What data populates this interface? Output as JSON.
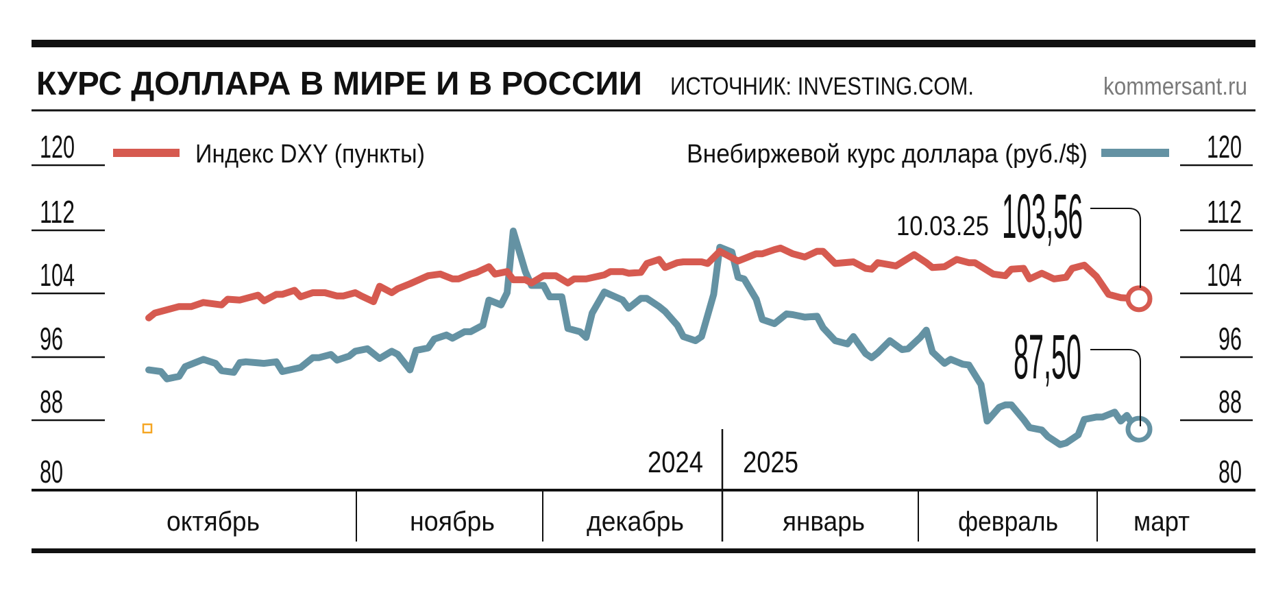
{
  "header": {
    "title": "КУРС ДОЛЛАРА В МИРЕ И В РОССИИ",
    "source": "ИСТОЧНИК: INVESTING.COM.",
    "brand": "kommersant.ru"
  },
  "legend": {
    "dxy": "Индекс DXY (пункты)",
    "rub": "Внебиржевой курс доллара (руб./$)"
  },
  "annotations": {
    "date": "10.03.25",
    "dxy_last": "103,56",
    "rub_last": "87,50"
  },
  "colors": {
    "dxy": "#d65a50",
    "rub": "#6492a3",
    "text": "#111111",
    "brand": "#7a7a7a",
    "marker": "#f5a623"
  },
  "chart_data": {
    "type": "line",
    "title": "КУРС ДОЛЛАРА В МИРЕ И В РОССИИ",
    "ylim": [
      80,
      120
    ],
    "y_ticks": [
      "120",
      "112",
      "104",
      "96",
      "88",
      "80"
    ],
    "y_ticks_right": [
      "120",
      "112",
      "104",
      "96",
      "88",
      "80"
    ],
    "year_labels": [
      "2024",
      "2025"
    ],
    "month_labels": [
      "октябрь",
      "ноябрь",
      "декабрь",
      "январь",
      "февраль",
      "март"
    ],
    "grid": false,
    "legend_placement": "top",
    "series": [
      {
        "name": "Индекс DXY (пункты)",
        "color": "#d65a50",
        "points": [
          [
            "2024-09-28",
            101.2
          ],
          [
            "2024-09-29",
            101.8
          ],
          [
            "2024-10-01",
            102.2
          ],
          [
            "2024-10-03",
            102.6
          ],
          [
            "2024-10-05",
            102.6
          ],
          [
            "2024-10-07",
            103.1
          ],
          [
            "2024-10-10",
            102.8
          ],
          [
            "2024-10-11",
            103.5
          ],
          [
            "2024-10-13",
            103.4
          ],
          [
            "2024-10-16",
            104.0
          ],
          [
            "2024-10-17",
            103.3
          ],
          [
            "2024-10-19",
            104.1
          ],
          [
            "2024-10-20",
            104.1
          ],
          [
            "2024-10-22",
            104.6
          ],
          [
            "2024-10-23",
            103.8
          ],
          [
            "2024-10-25",
            104.3
          ],
          [
            "2024-10-27",
            104.3
          ],
          [
            "2024-10-29",
            103.9
          ],
          [
            "2024-10-30",
            103.9
          ],
          [
            "2024-11-01",
            104.3
          ],
          [
            "2024-11-02",
            103.9
          ],
          [
            "2024-11-04",
            103.2
          ],
          [
            "2024-11-05",
            105.1
          ],
          [
            "2024-11-07",
            104.3
          ],
          [
            "2024-11-08",
            104.8
          ],
          [
            "2024-11-10",
            105.4
          ],
          [
            "2024-11-13",
            106.4
          ],
          [
            "2024-11-15",
            106.6
          ],
          [
            "2024-11-17",
            106.0
          ],
          [
            "2024-11-18",
            106.0
          ],
          [
            "2024-11-20",
            106.6
          ],
          [
            "2024-11-21",
            106.8
          ],
          [
            "2024-11-23",
            107.5
          ],
          [
            "2024-11-24",
            106.6
          ],
          [
            "2024-11-26",
            106.9
          ],
          [
            "2024-11-27",
            105.9
          ],
          [
            "2024-11-29",
            105.9
          ],
          [
            "2024-11-30",
            105.5
          ],
          [
            "2024-12-02",
            106.4
          ],
          [
            "2024-12-04",
            106.4
          ],
          [
            "2024-12-06",
            105.5
          ],
          [
            "2024-12-07",
            106.0
          ],
          [
            "2024-12-09",
            106.0
          ],
          [
            "2024-12-12",
            106.5
          ],
          [
            "2024-12-13",
            106.9
          ],
          [
            "2024-12-15",
            106.9
          ],
          [
            "2024-12-16",
            106.7
          ],
          [
            "2024-12-18",
            106.8
          ],
          [
            "2024-12-19",
            107.9
          ],
          [
            "2024-12-21",
            108.4
          ],
          [
            "2024-12-22",
            107.4
          ],
          [
            "2024-12-24",
            108.0
          ],
          [
            "2024-12-25",
            108.1
          ],
          [
            "2024-12-28",
            108.1
          ],
          [
            "2024-12-29",
            107.9
          ],
          [
            "2024-12-31",
            109.4
          ],
          [
            "2025-01-01",
            109.0
          ],
          [
            "2025-01-03",
            108.2
          ],
          [
            "2025-01-04",
            108.5
          ],
          [
            "2025-01-06",
            109.1
          ],
          [
            "2025-01-07",
            109.1
          ],
          [
            "2025-01-09",
            109.6
          ],
          [
            "2025-01-10",
            109.8
          ],
          [
            "2025-01-12",
            109.1
          ],
          [
            "2025-01-14",
            108.7
          ],
          [
            "2025-01-16",
            109.4
          ],
          [
            "2025-01-17",
            109.4
          ],
          [
            "2025-01-19",
            107.9
          ],
          [
            "2025-01-22",
            108.1
          ],
          [
            "2025-01-24",
            107.3
          ],
          [
            "2025-01-25",
            107.2
          ],
          [
            "2025-01-26",
            108.0
          ],
          [
            "2025-01-29",
            107.6
          ],
          [
            "2025-02-01",
            109.0
          ],
          [
            "2025-02-03",
            108.0
          ],
          [
            "2025-02-04",
            107.4
          ],
          [
            "2025-02-06",
            107.5
          ],
          [
            "2025-02-08",
            108.4
          ],
          [
            "2025-02-10",
            108.0
          ],
          [
            "2025-02-11",
            108.0
          ],
          [
            "2025-02-14",
            106.6
          ],
          [
            "2025-02-16",
            106.4
          ],
          [
            "2025-02-17",
            107.2
          ],
          [
            "2025-02-19",
            107.3
          ],
          [
            "2025-02-20",
            106.0
          ],
          [
            "2025-02-22",
            106.7
          ],
          [
            "2025-02-24",
            106.0
          ],
          [
            "2025-02-26",
            106.2
          ],
          [
            "2025-02-27",
            107.3
          ],
          [
            "2025-03-01",
            107.7
          ],
          [
            "2025-03-03",
            106.3
          ],
          [
            "2025-03-05",
            104.1
          ],
          [
            "2025-03-07",
            103.7
          ],
          [
            "2025-03-10",
            103.56
          ]
        ]
      },
      {
        "name": "Внебиржевой курс доллара (руб./$)",
        "color": "#6492a3",
        "points": [
          [
            "2024-09-28",
            94.8
          ],
          [
            "2024-09-30",
            94.6
          ],
          [
            "2024-10-01",
            93.7
          ],
          [
            "2024-10-03",
            94.0
          ],
          [
            "2024-10-04",
            95.2
          ],
          [
            "2024-10-06",
            95.8
          ],
          [
            "2024-10-07",
            96.1
          ],
          [
            "2024-10-09",
            95.6
          ],
          [
            "2024-10-10",
            94.7
          ],
          [
            "2024-10-12",
            94.5
          ],
          [
            "2024-10-13",
            95.7
          ],
          [
            "2024-10-14",
            95.8
          ],
          [
            "2024-10-17",
            95.6
          ],
          [
            "2024-10-19",
            95.8
          ],
          [
            "2024-10-20",
            94.6
          ],
          [
            "2024-10-23",
            95.1
          ],
          [
            "2024-10-25",
            96.3
          ],
          [
            "2024-10-26",
            96.3
          ],
          [
            "2024-10-28",
            96.7
          ],
          [
            "2024-10-29",
            96.0
          ],
          [
            "2024-10-31",
            96.5
          ],
          [
            "2024-11-01",
            97.1
          ],
          [
            "2024-11-03",
            97.4
          ],
          [
            "2024-11-05",
            96.2
          ],
          [
            "2024-11-07",
            97.1
          ],
          [
            "2024-11-08",
            96.7
          ],
          [
            "2024-11-10",
            94.8
          ],
          [
            "2024-11-11",
            97.2
          ],
          [
            "2024-11-13",
            97.5
          ],
          [
            "2024-11-14",
            98.6
          ],
          [
            "2024-11-16",
            99.1
          ],
          [
            "2024-11-17",
            98.7
          ],
          [
            "2024-11-19",
            99.5
          ],
          [
            "2024-11-20",
            99.5
          ],
          [
            "2024-11-22",
            100.3
          ],
          [
            "2024-11-23",
            103.4
          ],
          [
            "2024-11-25",
            102.8
          ],
          [
            "2024-11-26",
            104.3
          ],
          [
            "2024-11-27",
            111.9
          ],
          [
            "2024-11-29",
            106.9
          ],
          [
            "2024-11-30",
            105.2
          ],
          [
            "2024-12-02",
            105.2
          ],
          [
            "2024-12-03",
            103.8
          ],
          [
            "2024-12-05",
            103.8
          ],
          [
            "2024-12-06",
            99.9
          ],
          [
            "2024-12-08",
            99.5
          ],
          [
            "2024-12-09",
            98.8
          ],
          [
            "2024-12-10",
            101.8
          ],
          [
            "2024-12-12",
            104.4
          ],
          [
            "2024-12-15",
            103.4
          ],
          [
            "2024-12-16",
            102.4
          ],
          [
            "2024-12-18",
            103.6
          ],
          [
            "2024-12-19",
            103.6
          ],
          [
            "2024-12-21",
            102.6
          ],
          [
            "2024-12-22",
            102.0
          ],
          [
            "2024-12-24",
            100.3
          ],
          [
            "2024-12-25",
            98.9
          ],
          [
            "2024-12-27",
            98.4
          ],
          [
            "2024-12-28",
            98.9
          ],
          [
            "2024-12-30",
            104.1
          ],
          [
            "2024-12-31",
            109.9
          ],
          [
            "2025-01-02",
            109.3
          ],
          [
            "2025-01-03",
            106.2
          ],
          [
            "2025-01-04",
            106.0
          ],
          [
            "2025-01-06",
            103.5
          ],
          [
            "2025-01-07",
            101.0
          ],
          [
            "2025-01-09",
            100.5
          ],
          [
            "2025-01-11",
            101.7
          ],
          [
            "2025-01-12",
            101.6
          ],
          [
            "2025-01-14",
            101.3
          ],
          [
            "2025-01-16",
            101.4
          ],
          [
            "2025-01-17",
            100.0
          ],
          [
            "2025-01-19",
            98.4
          ],
          [
            "2025-01-21",
            98.0
          ],
          [
            "2025-01-22",
            98.9
          ],
          [
            "2025-01-24",
            96.8
          ],
          [
            "2025-01-25",
            96.3
          ],
          [
            "2025-01-26",
            96.9
          ],
          [
            "2025-01-28",
            98.4
          ],
          [
            "2025-01-30",
            97.3
          ],
          [
            "2025-01-31",
            97.4
          ],
          [
            "2025-02-02",
            98.8
          ],
          [
            "2025-02-03",
            99.7
          ],
          [
            "2025-02-04",
            97.0
          ],
          [
            "2025-02-06",
            95.6
          ],
          [
            "2025-02-07",
            96.1
          ],
          [
            "2025-02-09",
            95.5
          ],
          [
            "2025-02-10",
            95.4
          ],
          [
            "2025-02-12",
            93.0
          ],
          [
            "2025-02-13",
            88.5
          ],
          [
            "2025-02-15",
            90.2
          ],
          [
            "2025-02-16",
            90.5
          ],
          [
            "2025-02-17",
            90.5
          ],
          [
            "2025-02-19",
            88.7
          ],
          [
            "2025-02-20",
            87.7
          ],
          [
            "2025-02-22",
            87.4
          ],
          [
            "2025-02-23",
            86.6
          ],
          [
            "2025-02-25",
            85.6
          ],
          [
            "2025-02-26",
            85.8
          ],
          [
            "2025-02-28",
            86.8
          ],
          [
            "2025-03-01",
            88.7
          ],
          [
            "2025-03-03",
            89.0
          ],
          [
            "2025-03-04",
            89.0
          ],
          [
            "2025-03-06",
            89.6
          ],
          [
            "2025-03-07",
            88.5
          ],
          [
            "2025-03-08",
            89.2
          ],
          [
            "2025-03-09",
            88.1
          ],
          [
            "2025-03-10",
            87.5
          ]
        ]
      }
    ]
  }
}
